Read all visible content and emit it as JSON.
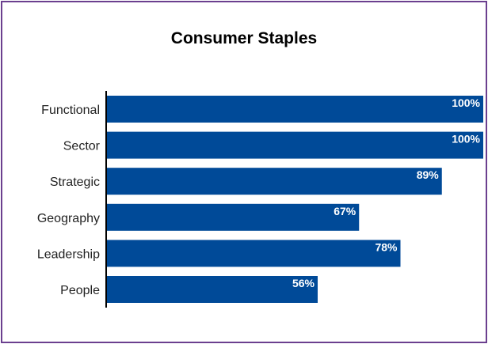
{
  "chart_data": {
    "type": "bar",
    "orientation": "horizontal",
    "title": "Consumer Staples",
    "categories": [
      "Functional",
      "Sector",
      "Strategic",
      "Geography",
      "Leadership",
      "People"
    ],
    "values": [
      100,
      100,
      89,
      67,
      78,
      56
    ],
    "value_labels": [
      "100%",
      "100%",
      "89%",
      "67%",
      "78%",
      "56%"
    ],
    "xlim": [
      0,
      100
    ],
    "unit": "%",
    "grid": false,
    "bar_color": "#004a98",
    "frame_color": "#6b3f8f"
  }
}
